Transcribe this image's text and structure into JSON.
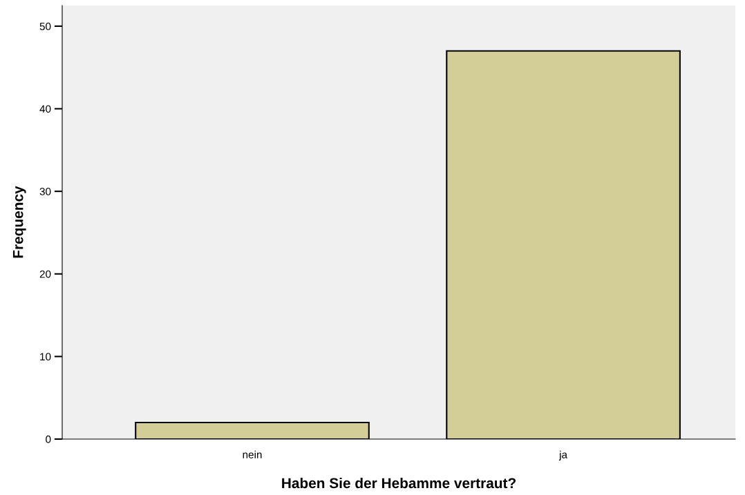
{
  "chart_data": {
    "type": "bar",
    "xlabel": "Haben Sie der Hebamme vertraut?",
    "ylabel": "Frequency",
    "categories": [
      "nein",
      "ja"
    ],
    "series": [
      {
        "color": "#d3ce97",
        "values": [
          2,
          47
        ]
      }
    ],
    "ylim": [
      0,
      52.5
    ],
    "yticks": [
      0,
      10,
      20,
      30,
      40,
      50
    ],
    "grid": false,
    "legend": false
  }
}
